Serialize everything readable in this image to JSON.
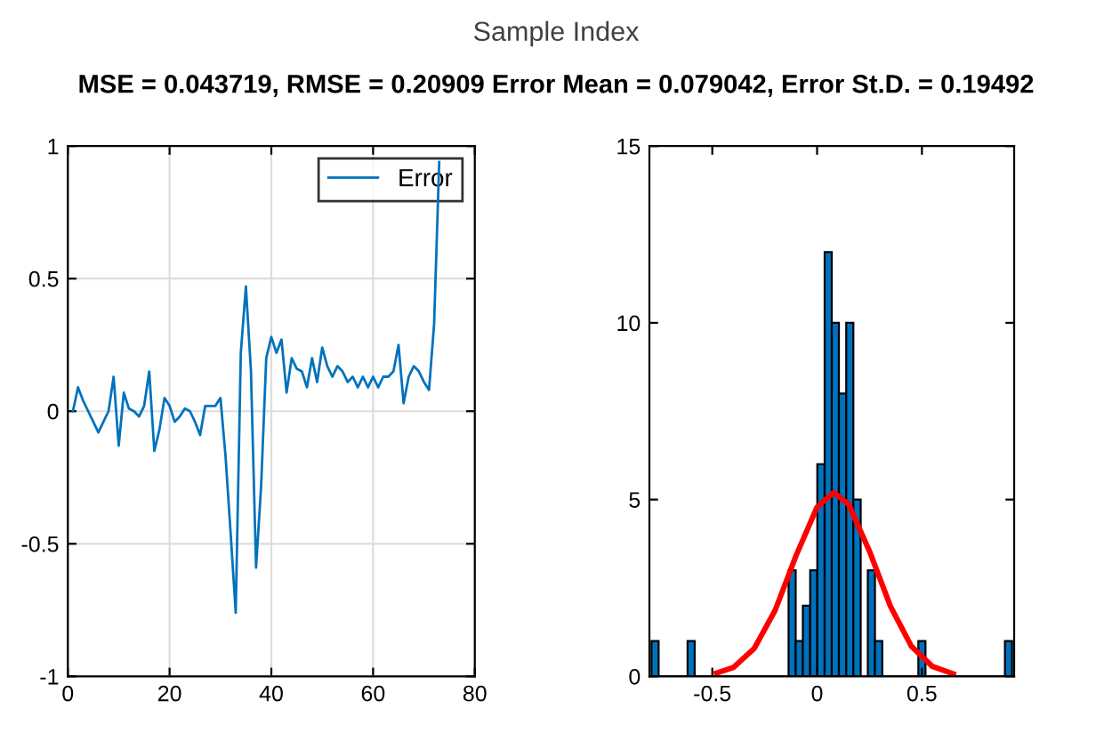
{
  "chart_data": [
    {
      "type": "line",
      "title": "MSE = 0.043719, RMSE = 0.20909 Error Mean = 0.079042, Error St.D. = 0.19492",
      "annotations": [
        "Sample Index"
      ],
      "x": [
        1,
        2,
        3,
        4,
        5,
        6,
        7,
        8,
        9,
        10,
        11,
        12,
        13,
        14,
        15,
        16,
        17,
        18,
        19,
        20,
        21,
        22,
        23,
        24,
        25,
        26,
        27,
        28,
        29,
        30,
        31,
        32,
        33,
        34,
        35,
        36,
        37,
        38,
        39,
        40,
        41,
        42,
        43,
        44,
        45,
        46,
        47,
        48,
        49,
        50,
        51,
        52,
        53,
        54,
        55,
        56,
        57,
        58,
        59,
        60,
        61,
        62,
        63,
        64,
        65,
        66,
        67,
        68,
        69,
        70,
        71,
        72,
        73
      ],
      "series": [
        {
          "name": "Error",
          "color": "#0072bd",
          "values": [
            0.0,
            0.09,
            0.04,
            0.0,
            -0.04,
            -0.08,
            -0.04,
            0.0,
            0.13,
            -0.13,
            0.07,
            0.01,
            0.0,
            -0.02,
            0.02,
            0.15,
            -0.15,
            -0.07,
            0.05,
            0.02,
            -0.04,
            -0.02,
            0.01,
            0.0,
            -0.04,
            -0.09,
            0.02,
            0.02,
            0.02,
            0.05,
            -0.17,
            -0.46,
            -0.76,
            0.22,
            0.47,
            0.15,
            -0.59,
            -0.28,
            0.2,
            0.28,
            0.22,
            0.27,
            0.07,
            0.2,
            0.16,
            0.15,
            0.09,
            0.2,
            0.11,
            0.24,
            0.17,
            0.13,
            0.17,
            0.15,
            0.11,
            0.13,
            0.09,
            0.13,
            0.09,
            0.13,
            0.09,
            0.13,
            0.13,
            0.15,
            0.25,
            0.03,
            0.13,
            0.17,
            0.15,
            0.11,
            0.08,
            0.33,
            0.94
          ]
        }
      ],
      "xlim": [
        0,
        80
      ],
      "ylim": [
        -1,
        1
      ],
      "xticks": [
        0,
        20,
        40,
        60,
        80
      ],
      "yticks": [
        -1,
        -0.5,
        0,
        0.5,
        1
      ],
      "grid": true,
      "legend": "top right"
    },
    {
      "type": "histogram",
      "color": "#0072bd",
      "bins": [
        -0.79,
        -0.756,
        -0.721,
        -0.687,
        -0.652,
        -0.618,
        -0.584,
        -0.549,
        -0.515,
        -0.48,
        -0.446,
        -0.412,
        -0.377,
        -0.343,
        -0.308,
        -0.274,
        -0.24,
        -0.205,
        -0.171,
        -0.136,
        -0.102,
        -0.068,
        -0.033,
        0.001,
        0.036,
        0.07,
        0.104,
        0.139,
        0.173,
        0.208,
        0.242,
        0.276,
        0.311,
        0.345,
        0.38,
        0.414,
        0.448,
        0.483,
        0.517,
        0.552,
        0.586,
        0.62,
        0.655,
        0.689,
        0.724,
        0.758,
        0.792,
        0.827,
        0.861,
        0.896,
        0.93
      ],
      "values": [
        1,
        0,
        0,
        0,
        0,
        1,
        0,
        0,
        0,
        0,
        0,
        0,
        0,
        0,
        0,
        0,
        0,
        0,
        0,
        3,
        1,
        2,
        3,
        6,
        12,
        10,
        8,
        10,
        5,
        0,
        3,
        1,
        0,
        0,
        0,
        0,
        0,
        1,
        0,
        0,
        0,
        0,
        0,
        0,
        0,
        0,
        0,
        0,
        0,
        1
      ],
      "series": [
        {
          "type": "line",
          "color": "#ff0000",
          "x": [
            -0.48,
            -0.4,
            -0.3,
            -0.2,
            -0.1,
            0,
            0.08,
            0.15,
            0.25,
            0.35,
            0.45,
            0.55,
            0.65
          ],
          "values": [
            0.09,
            0.25,
            0.79,
            1.87,
            3.42,
            4.79,
            5.2,
            4.87,
            3.54,
            1.98,
            0.85,
            0.28,
            0.07
          ]
        }
      ],
      "xlim": [
        -0.8,
        0.94
      ],
      "ylim": [
        0,
        15
      ],
      "xticks": [
        -0.5,
        0,
        0.5
      ],
      "yticks": [
        0,
        5,
        10,
        15
      ],
      "grid": false
    }
  ]
}
